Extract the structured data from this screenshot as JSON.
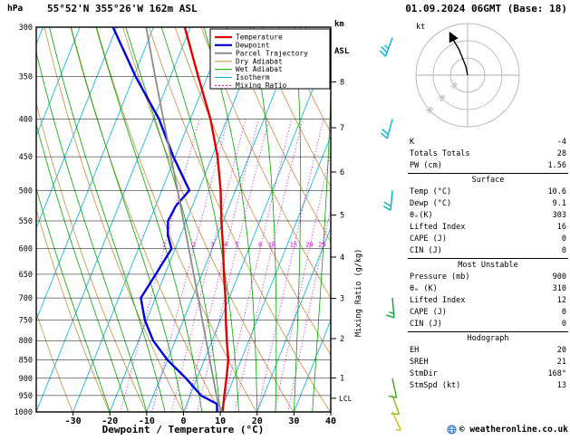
{
  "header": {
    "left_unit": "hPa",
    "station": "55°52'N 355°26'W 162m ASL",
    "datetime": "01.09.2024 06GMT (Base: 18)"
  },
  "legend": {
    "items": [
      {
        "label": "Temperature",
        "color": "#e00000",
        "width": 2.2
      },
      {
        "label": "Dewpoint",
        "color": "#0000e0",
        "width": 2.2
      },
      {
        "label": "Parcel Trajectory",
        "color": "#8c8c8c",
        "width": 2
      },
      {
        "label": "Dry Adiabat",
        "color": "#cc9040",
        "width": 1
      },
      {
        "label": "Wet Adiabat",
        "color": "#00a800",
        "width": 1
      },
      {
        "label": "Isotherm",
        "color": "#00b0e0",
        "width": 1
      },
      {
        "label": "Mixing Ratio",
        "color": "#d400d4",
        "width": 1,
        "dash": "2,2"
      }
    ]
  },
  "chart_data": {
    "type": "skewt_log_p_sounding",
    "title": "55°52'N 355°26'W 162m ASL",
    "datetime": "01.09.2024 06GMT (Base: 18)",
    "x_axis": {
      "label": "Dewpoint / Temperature (°C)",
      "min": -40,
      "max": 40,
      "ticks": [
        -30,
        -20,
        -10,
        0,
        10,
        20,
        30,
        40
      ]
    },
    "y_axis": {
      "unit": "hPa",
      "scale": "log",
      "min": 300,
      "max": 1000,
      "ticks": [
        300,
        350,
        400,
        450,
        500,
        550,
        600,
        650,
        700,
        750,
        800,
        850,
        900,
        950,
        1000
      ]
    },
    "y2_axis": {
      "unit_top": "km",
      "unit_bottom": "ASL",
      "lcl_label": "LCL",
      "lcl_hpa": 958,
      "ticks": [
        {
          "label": "8",
          "hpa": 356
        },
        {
          "label": "7",
          "hpa": 411
        },
        {
          "label": "6",
          "hpa": 472
        },
        {
          "label": "5",
          "hpa": 540
        },
        {
          "label": "4",
          "hpa": 616
        },
        {
          "label": "3",
          "hpa": 701
        },
        {
          "label": "2",
          "hpa": 795
        },
        {
          "label": "1",
          "hpa": 899
        }
      ]
    },
    "series": [
      {
        "id": "temperature-curve",
        "name": "Temperature",
        "color": "#e00000",
        "width": 2.4,
        "points": [
          [
            1000,
            10.6
          ],
          [
            950,
            9.3
          ],
          [
            900,
            8.0
          ],
          [
            850,
            6.5
          ],
          [
            800,
            4.0
          ],
          [
            750,
            1.5
          ],
          [
            700,
            -1.0
          ],
          [
            650,
            -4.0
          ],
          [
            600,
            -7.0
          ],
          [
            550,
            -10.5
          ],
          [
            500,
            -14.0
          ],
          [
            450,
            -18.5
          ],
          [
            400,
            -24.5
          ],
          [
            350,
            -32.5
          ],
          [
            300,
            -41.5
          ]
        ]
      },
      {
        "id": "dewpoint-curve",
        "name": "Dewpoint",
        "color": "#0000e0",
        "width": 2.4,
        "points": [
          [
            1000,
            9.1
          ],
          [
            975,
            8.2
          ],
          [
            950,
            3.0
          ],
          [
            900,
            -3.0
          ],
          [
            850,
            -10.0
          ],
          [
            800,
            -16.0
          ],
          [
            750,
            -20.5
          ],
          [
            700,
            -24.0
          ],
          [
            650,
            -22.5
          ],
          [
            600,
            -21.0
          ],
          [
            575,
            -23.5
          ],
          [
            550,
            -25.0
          ],
          [
            525,
            -24.5
          ],
          [
            500,
            -22.5
          ],
          [
            450,
            -30.5
          ],
          [
            400,
            -38.5
          ],
          [
            350,
            -49.5
          ],
          [
            300,
            -61.0
          ]
        ]
      },
      {
        "id": "parcel-curve",
        "name": "Parcel Trajectory",
        "color": "#8c8c8c",
        "width": 1.8,
        "points": [
          [
            1000,
            10.6
          ],
          [
            977,
            8.7
          ],
          [
            950,
            7.2
          ],
          [
            900,
            4.4
          ],
          [
            850,
            1.5
          ],
          [
            800,
            -1.6
          ],
          [
            750,
            -4.9
          ],
          [
            700,
            -8.4
          ],
          [
            650,
            -12.2
          ],
          [
            600,
            -16.3
          ],
          [
            550,
            -20.8
          ],
          [
            500,
            -25.7
          ],
          [
            450,
            -31.2
          ],
          [
            400,
            -37.3
          ],
          [
            350,
            -44.2
          ],
          [
            300,
            -52.0
          ]
        ]
      }
    ],
    "background_lines": {
      "isotherms": {
        "color": "#00b0e0",
        "start": -100,
        "end": 40,
        "step": 10
      },
      "dry_adiabats": {
        "color": "#cc9040",
        "theta_k_start": 243,
        "theta_k_end": 443,
        "step": 10
      },
      "wet_adiabats": {
        "color": "#00a800",
        "thetaw_c_start": -20,
        "thetaw_c_end": 35,
        "step": 5
      },
      "mixing_ratio": {
        "color": "#d400d4",
        "values": [
          1,
          2,
          3,
          4,
          5,
          8,
          10,
          15,
          20,
          25
        ],
        "label_pressure": 600,
        "unit_label": "Mixing Ratio (g/kg)"
      }
    },
    "wind_barbs": [
      {
        "pressure": 310,
        "speed_kt": 25,
        "dir_deg": 200,
        "color": "#00b4d8"
      },
      {
        "pressure": 400,
        "speed_kt": 20,
        "dir_deg": 195,
        "color": "#00b4d8"
      },
      {
        "pressure": 500,
        "speed_kt": 20,
        "dir_deg": 185,
        "color": "#00b4b4"
      },
      {
        "pressure": 700,
        "speed_kt": 15,
        "dir_deg": 175,
        "color": "#00a830"
      },
      {
        "pressure": 900,
        "speed_kt": 10,
        "dir_deg": 168,
        "color": "#38b018"
      },
      {
        "pressure": 950,
        "speed_kt": 10,
        "dir_deg": 160,
        "color": "#8cb414"
      },
      {
        "pressure": 1000,
        "speed_kt": 8,
        "dir_deg": 155,
        "color": "#c2c20a"
      }
    ],
    "hodograph": {
      "unit": "kt",
      "rings": [
        10,
        20,
        30
      ],
      "trace_uv_kt": [
        [
          0,
          0
        ],
        [
          -1,
          5
        ],
        [
          -3,
          10
        ],
        [
          -5,
          15
        ],
        [
          -8,
          20
        ],
        [
          -10,
          24
        ]
      ]
    }
  },
  "indices": {
    "top_rows": [
      {
        "label": "K",
        "value": "-4"
      },
      {
        "label": "Totals Totals",
        "value": "28"
      },
      {
        "label": "PW (cm)",
        "value": "1.56"
      }
    ],
    "sections": [
      {
        "title": "Surface",
        "rows": [
          {
            "label": "Temp (°C)",
            "value": "10.6"
          },
          {
            "label": "Dewp (°C)",
            "value": "9.1"
          },
          {
            "label": "θₑ(K)",
            "value": "303"
          },
          {
            "label": "Lifted Index",
            "value": "16"
          },
          {
            "label": "CAPE (J)",
            "value": "0"
          },
          {
            "label": "CIN (J)",
            "value": "0"
          }
        ]
      },
      {
        "title": "Most Unstable",
        "rows": [
          {
            "label": "Pressure (mb)",
            "value": "900"
          },
          {
            "label": "θₑ (K)",
            "value": "310"
          },
          {
            "label": "Lifted Index",
            "value": "12"
          },
          {
            "label": "CAPE (J)",
            "value": "0"
          },
          {
            "label": "CIN (J)",
            "value": "0"
          }
        ]
      },
      {
        "title": "Hodograph",
        "rows": [
          {
            "label": "EH",
            "value": "20"
          },
          {
            "label": "SREH",
            "value": "21"
          },
          {
            "label": "StmDir",
            "value": "168°"
          },
          {
            "label": "StmSpd (kt)",
            "value": "13"
          }
        ]
      }
    ]
  },
  "footer": {
    "copyright": "© weatheronline.co.uk"
  }
}
